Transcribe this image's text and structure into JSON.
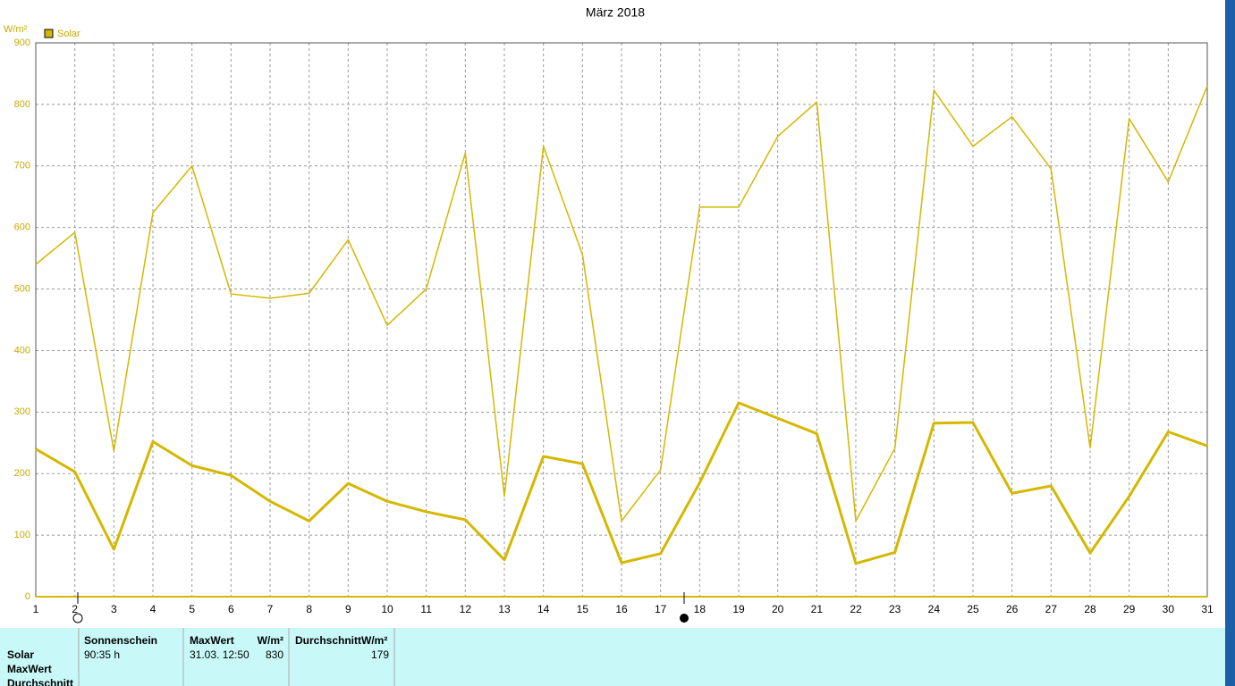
{
  "chart_data": {
    "type": "line",
    "title": "März 2018",
    "y_unit": "W/m²",
    "legend": "Solar",
    "legend_color": "#d4b800",
    "x": [
      1,
      2,
      3,
      4,
      5,
      6,
      7,
      8,
      9,
      10,
      11,
      12,
      13,
      14,
      15,
      16,
      17,
      18,
      19,
      20,
      21,
      22,
      23,
      24,
      25,
      26,
      27,
      28,
      29,
      30,
      31
    ],
    "series": [
      {
        "color": "#d4b800",
        "width": 1.5,
        "values": [
          540,
          592,
          237,
          624,
          700,
          492,
          485,
          493,
          580,
          441,
          500,
          721,
          163,
          732,
          556,
          123,
          206,
          633,
          633,
          748,
          804,
          123,
          241,
          823,
          732,
          780,
          695,
          242,
          777,
          674,
          830
        ]
      },
      {
        "color": "#d4b800",
        "width": 3,
        "values": [
          240,
          203,
          77,
          252,
          213,
          197,
          155,
          123,
          184,
          155,
          138,
          125,
          60,
          228,
          216,
          55,
          70,
          185,
          315,
          290,
          265,
          54,
          72,
          282,
          283,
          168,
          180,
          71,
          163,
          268,
          245
        ]
      }
    ],
    "xlim": [
      1,
      31
    ],
    "xticks": [
      1,
      2,
      3,
      4,
      5,
      6,
      7,
      8,
      9,
      10,
      11,
      12,
      13,
      14,
      15,
      16,
      17,
      18,
      19,
      20,
      21,
      22,
      23,
      24,
      25,
      26,
      27,
      28,
      29,
      30,
      31
    ],
    "ylim": [
      0,
      900
    ],
    "yticks": [
      0,
      100,
      200,
      300,
      400,
      500,
      600,
      700,
      800,
      900
    ],
    "grid": true
  },
  "summary": {
    "row_labels": [
      "Solar",
      "MaxWert",
      "Durchschnitt"
    ],
    "sunshine": {
      "header": "Sonnenschein",
      "value": "90:35 h"
    },
    "max": {
      "header": "MaxWert",
      "unit": "W/m²",
      "date": "31.03.  12:50",
      "value": "830"
    },
    "avg": {
      "header": "DurchschnittW/m²",
      "value": "179"
    }
  }
}
